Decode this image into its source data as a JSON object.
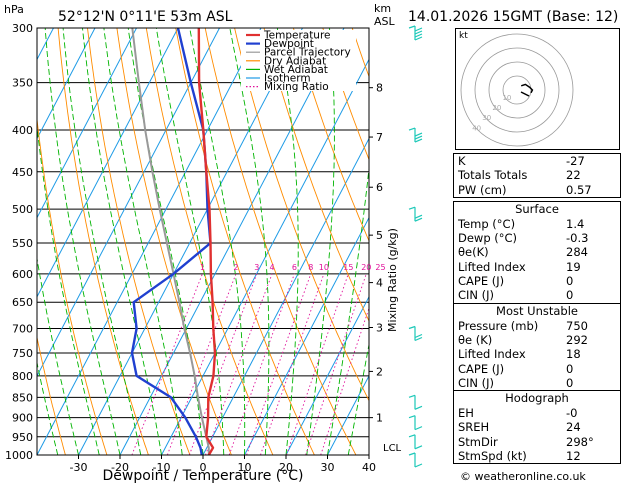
{
  "header": {
    "location": "52°12'N  0°11'E  53m  ASL",
    "hpa_unit": "hPa",
    "km_unit": "km",
    "asl_unit": "ASL",
    "datetime": "14.01.2026  15GMT  (Base: 12)"
  },
  "colors": {
    "temperature": "#e03030",
    "dewpoint": "#2040d0",
    "parcel": "#999999",
    "dry_adiabat": "#ff8c00",
    "wet_adiabat": "#00b400",
    "isotherm": "#1e9be6",
    "mixing_ratio": "#e0109a",
    "wind_barb": "#1cc8b8"
  },
  "chart_data": {
    "type": "skew-t log-p",
    "xlabel": "Dewpoint / Temperature (°C)",
    "ylabel_right": "Mixing Ratio (g/kg)",
    "pressure_ticks": [
      300,
      350,
      400,
      450,
      500,
      550,
      600,
      650,
      700,
      750,
      800,
      850,
      900,
      950,
      1000
    ],
    "temperature_ticks": [
      -30,
      -20,
      -10,
      0,
      10,
      20,
      30,
      40
    ],
    "km_ticks": [
      {
        "km": "1",
        "p": 900
      },
      {
        "km": "2",
        "p": 790
      },
      {
        "km": "3",
        "p": 698
      },
      {
        "km": "4",
        "p": 615
      },
      {
        "km": "5",
        "p": 538
      },
      {
        "km": "6",
        "p": 470
      },
      {
        "km": "7",
        "p": 408
      },
      {
        "km": "8",
        "p": 355
      }
    ],
    "lcl_label": "LCL",
    "lcl_pressure": 980,
    "mixing_ratio_labels": [
      "1",
      "2",
      "3",
      "4",
      "6",
      "8",
      "10",
      "15",
      "20",
      "25"
    ],
    "legend": [
      "Temperature",
      "Dewpoint",
      "Parcel Trajectory",
      "Dry Adiabat",
      "Wet Adiabat",
      "Isotherm",
      "Mixing Ratio"
    ],
    "temperature_profile": [
      [
        1000,
        1.4
      ],
      [
        980,
        1.5
      ],
      [
        950,
        -1.5
      ],
      [
        900,
        -3.5
      ],
      [
        850,
        -6
      ],
      [
        800,
        -7.5
      ],
      [
        750,
        -10
      ],
      [
        700,
        -13.5
      ],
      [
        650,
        -17
      ],
      [
        600,
        -21
      ],
      [
        550,
        -25
      ],
      [
        500,
        -29.5
      ],
      [
        450,
        -35
      ],
      [
        400,
        -41
      ],
      [
        350,
        -48
      ],
      [
        300,
        -55
      ]
    ],
    "dewpoint_profile": [
      [
        1000,
        -0.3
      ],
      [
        980,
        -1.5
      ],
      [
        950,
        -4
      ],
      [
        900,
        -9
      ],
      [
        850,
        -15
      ],
      [
        800,
        -26
      ],
      [
        750,
        -30
      ],
      [
        700,
        -32
      ],
      [
        650,
        -36
      ],
      [
        600,
        -30
      ],
      [
        550,
        -25
      ],
      [
        500,
        -30
      ],
      [
        450,
        -35
      ],
      [
        400,
        -41
      ],
      [
        350,
        -50
      ],
      [
        300,
        -60
      ]
    ],
    "parcel_profile": [
      [
        1000,
        1.4
      ],
      [
        980,
        0.5
      ],
      [
        950,
        -1.5
      ],
      [
        900,
        -5
      ],
      [
        850,
        -8.5
      ],
      [
        800,
        -12
      ],
      [
        750,
        -16
      ],
      [
        700,
        -20.5
      ],
      [
        650,
        -25
      ],
      [
        600,
        -30
      ],
      [
        550,
        -35.5
      ],
      [
        500,
        -41.5
      ],
      [
        450,
        -48
      ],
      [
        400,
        -55
      ],
      [
        350,
        -62.5
      ],
      [
        300,
        -71
      ]
    ],
    "wind_barbs": [
      {
        "p": 1000,
        "dir": 300,
        "kt": 10
      },
      {
        "p": 950,
        "dir": 295,
        "kt": 10
      },
      {
        "p": 900,
        "dir": 290,
        "kt": 10
      },
      {
        "p": 850,
        "dir": 300,
        "kt": 10
      },
      {
        "p": 700,
        "dir": 280,
        "kt": 15
      },
      {
        "p": 500,
        "dir": 280,
        "kt": 20
      },
      {
        "p": 400,
        "dir": 280,
        "kt": 25
      },
      {
        "p": 300,
        "dir": 280,
        "kt": 35
      }
    ],
    "hodograph": {
      "unit": "kt",
      "rings": [
        "10",
        "20",
        "30",
        "40"
      ],
      "points": [
        [
          3,
          3
        ],
        [
          6,
          4
        ],
        [
          9,
          2
        ],
        [
          11,
          0
        ],
        [
          10,
          -2
        ]
      ]
    }
  },
  "indices": {
    "k_label": "K",
    "k": "-27",
    "tt_label": "Totals Totals",
    "tt": "22",
    "pw_label": "PW (cm)",
    "pw": "0.57"
  },
  "surface": {
    "title": "Surface",
    "temp_label": "Temp (°C)",
    "temp": "1.4",
    "dewp_label": "Dewp (°C)",
    "dewp": "-0.3",
    "theta_label": "θe(K)",
    "theta": "284",
    "li_label": "Lifted Index",
    "li": "19",
    "cape_label": "CAPE (J)",
    "cape": "0",
    "cin_label": "CIN (J)",
    "cin": "0"
  },
  "most_unstable": {
    "title": "Most Unstable",
    "pressure_label": "Pressure (mb)",
    "pressure": "750",
    "theta_label": "θe (K)",
    "theta": "292",
    "li_label": "Lifted Index",
    "li": "18",
    "cape_label": "CAPE (J)",
    "cape": "0",
    "cin_label": "CIN (J)",
    "cin": "0"
  },
  "hodograph_table": {
    "title": "Hodograph",
    "eh_label": "EH",
    "eh": "-0",
    "srh_label": "SREH",
    "srh": "24",
    "stmdir_label": "StmDir",
    "stmdir": "298°",
    "stmspd_label": "StmSpd (kt)",
    "stmspd": "12"
  },
  "footer": "© weatheronline.co.uk"
}
